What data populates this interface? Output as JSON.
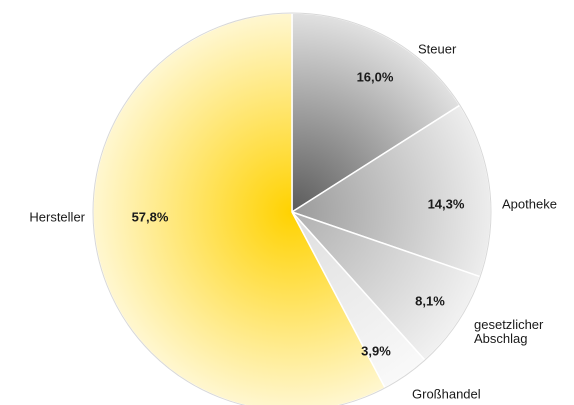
{
  "chart_data": {
    "type": "pie",
    "categories": [
      "Steuer",
      "Apotheke",
      "gesetzlicher Abschlag",
      "Großhandel",
      "Hersteller"
    ],
    "values": [
      16.0,
      14.3,
      8.1,
      3.9,
      57.8
    ],
    "value_labels": [
      "16,0%",
      "14,3%",
      "8,1%",
      "3,9%",
      "57,8%"
    ],
    "colors": [
      "#5a5a5a",
      "#9a9a9a",
      "#b0b0b0",
      "#dedede",
      "#ffd200"
    ]
  }
}
